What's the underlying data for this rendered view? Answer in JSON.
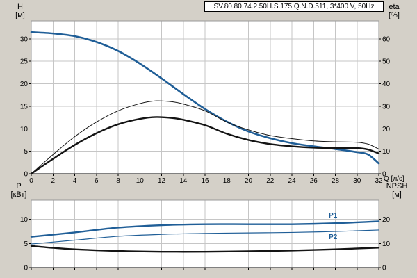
{
  "title_box": {
    "text": "SV.80.80.74.2.50H.S.175.Q.N.D.511, 3*400 V, 50Hz"
  },
  "colors": {
    "background": "#d4d0c8",
    "plot_bg": "#ffffff",
    "grid": "#c6c6c6",
    "axis": "#000000",
    "frame": "#999999",
    "curve_blue": "#1f5e97",
    "curve_black": "#141414"
  },
  "chart_data": [
    {
      "type": "line",
      "name": "head-efficiency-chart",
      "x": {
        "label": "Q [л/с]",
        "lim": [
          0,
          32
        ],
        "ticks": [
          0,
          2,
          4,
          6,
          8,
          10,
          12,
          14,
          16,
          18,
          20,
          22,
          24,
          26,
          28,
          30,
          32
        ],
        "show_tick_labels": true,
        "grid": true
      },
      "y_left": {
        "label": "H",
        "unit": "[м]",
        "lim": [
          0,
          34
        ],
        "ticks": [
          0,
          5,
          10,
          15,
          20,
          25,
          30
        ]
      },
      "y_right": {
        "label": "eta",
        "unit": "[%]",
        "lim": [
          0,
          68
        ],
        "ticks": [
          0,
          10,
          20,
          30,
          40,
          50,
          60
        ]
      },
      "series": [
        {
          "name": "head-curve",
          "axis": "left",
          "color": "#1f5e97",
          "width": 2.6,
          "points": [
            [
              0,
              31.5
            ],
            [
              2,
              31.2
            ],
            [
              4,
              30.6
            ],
            [
              6,
              29.3
            ],
            [
              8,
              27.3
            ],
            [
              10,
              24.5
            ],
            [
              12,
              21.2
            ],
            [
              14,
              17.7
            ],
            [
              16,
              14.4
            ],
            [
              18,
              11.6
            ],
            [
              20,
              9.4
            ],
            [
              22,
              7.9
            ],
            [
              24,
              6.8
            ],
            [
              26,
              6.1
            ],
            [
              28,
              5.5
            ],
            [
              30,
              4.8
            ],
            [
              31,
              4.3
            ],
            [
              32,
              2.3
            ]
          ]
        },
        {
          "name": "eta-pump",
          "axis": "right",
          "color": "#141414",
          "width": 1,
          "points": [
            [
              0,
              0
            ],
            [
              2,
              8.5
            ],
            [
              4,
              16.5
            ],
            [
              6,
              23
            ],
            [
              8,
              28
            ],
            [
              10,
              31.2
            ],
            [
              11.5,
              32.4
            ],
            [
              13,
              32
            ],
            [
              14,
              31
            ],
            [
              16,
              28
            ],
            [
              18,
              23
            ],
            [
              20,
              19.5
            ],
            [
              22,
              17
            ],
            [
              24,
              15.6
            ],
            [
              26,
              14.6
            ],
            [
              28,
              14.2
            ],
            [
              30,
              14
            ],
            [
              31,
              13.2
            ],
            [
              32,
              11
            ]
          ]
        },
        {
          "name": "eta-pump-motor",
          "axis": "right",
          "color": "#141414",
          "width": 2.4,
          "points": [
            [
              0,
              0
            ],
            [
              2,
              6.6
            ],
            [
              4,
              12.8
            ],
            [
              6,
              18
            ],
            [
              8,
              22
            ],
            [
              10,
              24.4
            ],
            [
              11.5,
              25.2
            ],
            [
              13,
              24.8
            ],
            [
              14,
              24
            ],
            [
              16,
              21.6
            ],
            [
              18,
              17.8
            ],
            [
              20,
              15
            ],
            [
              22,
              13.2
            ],
            [
              24,
              12.2
            ],
            [
              26,
              11.6
            ],
            [
              28,
              11.4
            ],
            [
              30,
              11.4
            ],
            [
              31,
              10.8
            ],
            [
              32,
              9
            ]
          ]
        }
      ]
    },
    {
      "type": "line",
      "name": "power-npsh-chart",
      "x": {
        "label": "",
        "lim": [
          0,
          32
        ],
        "ticks": [
          0,
          2,
          4,
          6,
          8,
          10,
          12,
          14,
          16,
          18,
          20,
          22,
          24,
          26,
          28,
          30,
          32
        ],
        "show_tick_labels": false,
        "grid": true
      },
      "y_left": {
        "label": "P",
        "unit": "[кВт]",
        "lim": [
          0,
          14
        ],
        "ticks": [
          0,
          5,
          10
        ]
      },
      "y_right": {
        "label": "NPSH",
        "unit": "[м]",
        "lim": [
          0,
          28
        ],
        "ticks": [
          0,
          10,
          20
        ]
      },
      "series": [
        {
          "name": "power-p1",
          "axis": "left",
          "color": "#1f5e97",
          "width": 2.4,
          "label": {
            "text": "P1",
            "x": 27.4,
            "y": 10.4
          },
          "points": [
            [
              0,
              6.4
            ],
            [
              4,
              7.3
            ],
            [
              8,
              8.3
            ],
            [
              12,
              8.8
            ],
            [
              16,
              9.0
            ],
            [
              20,
              9.0
            ],
            [
              24,
              9.0
            ],
            [
              28,
              9.2
            ],
            [
              32,
              9.6
            ]
          ]
        },
        {
          "name": "power-p2",
          "axis": "left",
          "color": "#1f5e97",
          "width": 1.2,
          "label": {
            "text": "P2",
            "x": 27.4,
            "y": 5.9
          },
          "points": [
            [
              0,
              4.9
            ],
            [
              4,
              5.7
            ],
            [
              8,
              6.5
            ],
            [
              12,
              6.9
            ],
            [
              16,
              7.1
            ],
            [
              20,
              7.2
            ],
            [
              24,
              7.3
            ],
            [
              28,
              7.5
            ],
            [
              32,
              7.8
            ]
          ]
        },
        {
          "name": "npsh-curve",
          "axis": "right",
          "color": "#141414",
          "width": 2.4,
          "points": [
            [
              0,
              9.0
            ],
            [
              2,
              8.2
            ],
            [
              4,
              7.6
            ],
            [
              8,
              6.9
            ],
            [
              12,
              6.6
            ],
            [
              16,
              6.6
            ],
            [
              20,
              6.8
            ],
            [
              24,
              7.1
            ],
            [
              28,
              7.6
            ],
            [
              32,
              8.3
            ]
          ]
        }
      ]
    }
  ]
}
